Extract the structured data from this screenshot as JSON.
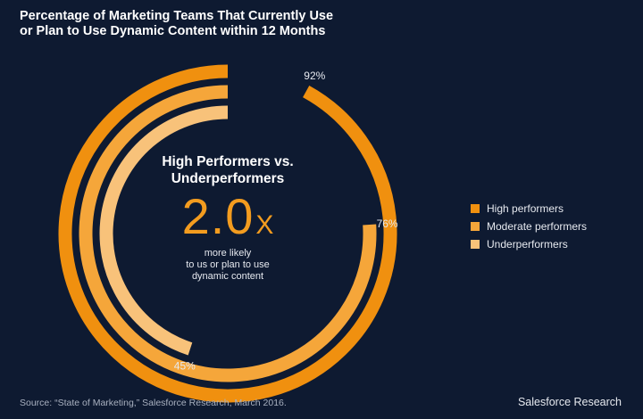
{
  "title_lines": [
    "Percentage of Marketing Teams That Currently Use",
    "or Plan to Use Dynamic Content within 12 Months"
  ],
  "center": {
    "heading_lines": [
      "High Performers vs.",
      "Underperformers"
    ],
    "value": "2.0",
    "suffix": "X",
    "note_lines": [
      "more likely",
      "to us or plan to use",
      "dynamic content"
    ]
  },
  "chart_data": {
    "type": "radial-bar",
    "max": 100,
    "series": [
      {
        "name": "High performers",
        "value": 92,
        "label": "92%",
        "color": "#f0900f"
      },
      {
        "name": "Moderate performers",
        "value": 76,
        "label": "76%",
        "color": "#f5a63a"
      },
      {
        "name": "Underperformers",
        "value": 45,
        "label": "45%",
        "color": "#f8c27a"
      }
    ],
    "legend_position": "right"
  },
  "footer": {
    "source": "Source: “State of Marketing,” Salesforce Research, March 2016.",
    "brand": "Salesforce Research"
  }
}
